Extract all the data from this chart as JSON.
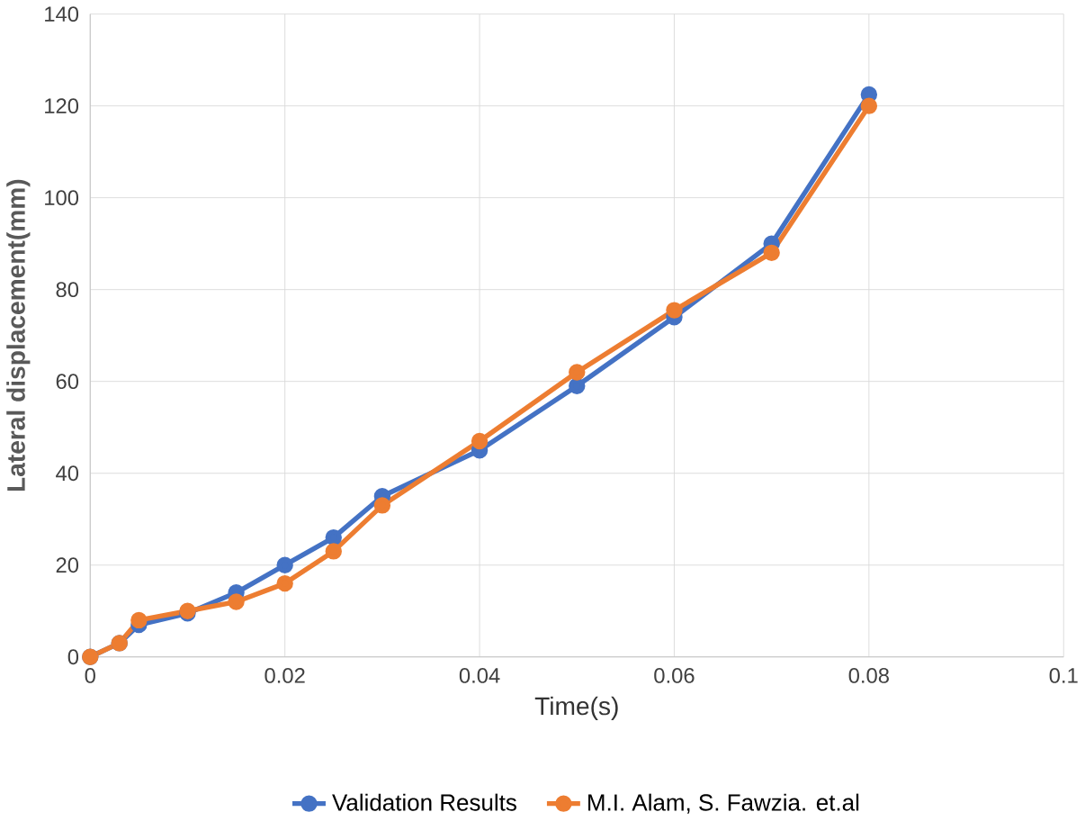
{
  "chart_data": {
    "type": "line",
    "xlabel": "Time(s)",
    "ylabel": "Lateral displacement(mm)",
    "x": [
      0,
      0.003,
      0.005,
      0.01,
      0.015,
      0.02,
      0.025,
      0.03,
      0.04,
      0.05,
      0.06,
      0.07,
      0.08
    ],
    "series": [
      {
        "name": "Validation Results",
        "color": "#4472c4",
        "values": [
          0,
          3,
          7,
          9.5,
          14,
          20,
          26,
          35,
          45,
          59,
          74,
          90,
          122.5
        ]
      },
      {
        "name": "M.I. Alam, S. Fawzia. et.al",
        "color": "#ed7d31",
        "values": [
          0,
          3,
          8,
          10,
          12,
          16,
          23,
          33,
          47,
          62,
          75.5,
          88,
          120
        ]
      }
    ],
    "xlim": [
      0,
      0.1
    ],
    "xticks": [
      0,
      0.02,
      0.04,
      0.06,
      0.08,
      0.1
    ],
    "ylim": [
      0,
      140
    ],
    "yticks": [
      0,
      20,
      40,
      60,
      80,
      100,
      120,
      140
    ],
    "grid": true,
    "legend": "bottom",
    "marker": "circle",
    "line_style": "solid"
  }
}
